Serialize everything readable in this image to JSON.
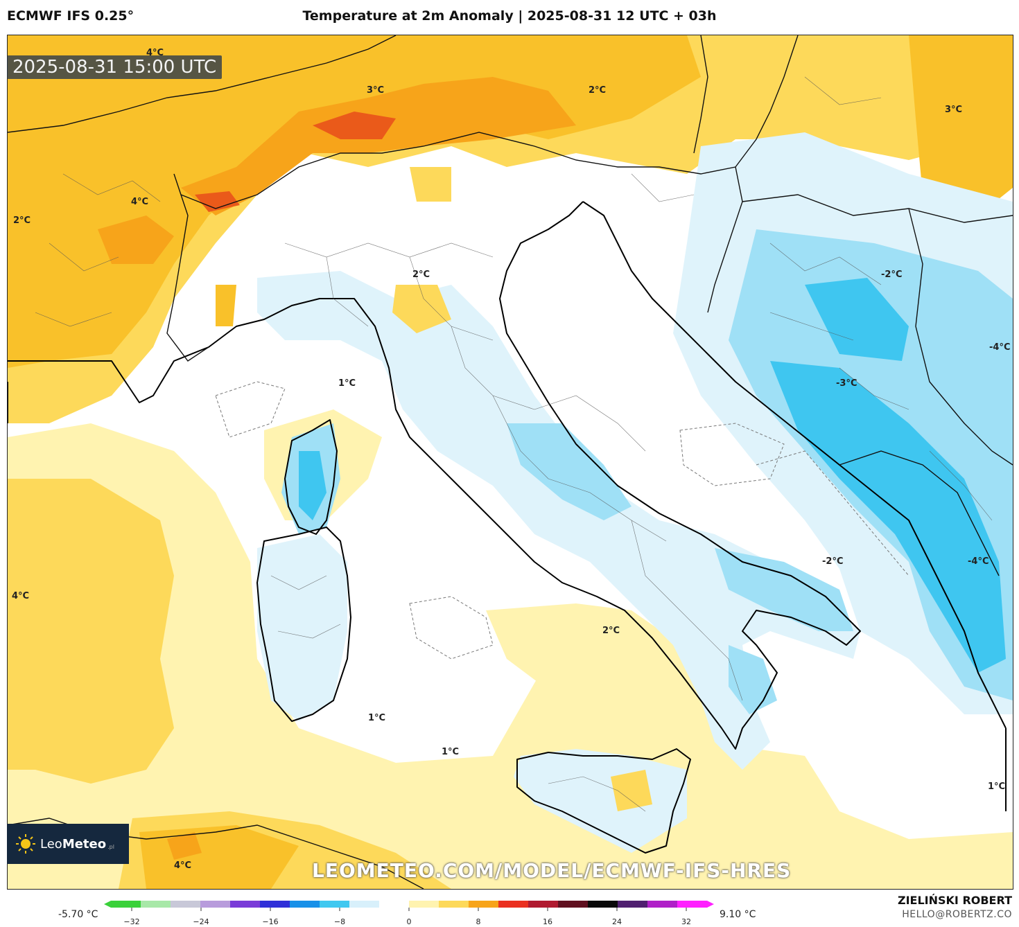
{
  "header": {
    "model": "ECMWF IFS 0.25°",
    "title": "Temperature at 2m Anomaly | 2025-08-31 12 UTC + 03h"
  },
  "map": {
    "valid_time": "2025-08-31 15:00 UTC",
    "watermark": "LEOMETEO.COM/MODEL/ECMWF-IFS-HRES",
    "logo": {
      "brand_light": "Leo",
      "brand_bold": "Meteo",
      "brand_suffix": ".pl"
    },
    "contour_labels": [
      "4°C",
      "3°C",
      "2°C",
      "3°C",
      "4°C",
      "2°C",
      "2°C",
      "-2°C",
      "-4°C",
      "-3°C",
      "1°C",
      "-2°C",
      "-4°C",
      "4°C",
      "2°C",
      "1°C",
      "1°C",
      "1°C",
      "4°C"
    ],
    "colors": {
      "warm_light": "#fff3b0",
      "warm_mid": "#fdd95a",
      "warm_strong": "#f9c12a",
      "warm_orange": "#f7a41a",
      "warm_red": "#ea5a1a",
      "cool_light": "#dff3fb",
      "cool_mid": "#9fe0f6",
      "cool_strong": "#3fc6f0",
      "land_border": "#000000"
    }
  },
  "colorbar": {
    "min_label": "-5.70 °C",
    "max_label": "9.10 °C",
    "ticks": [
      "-32",
      "-24",
      "-16",
      "-8",
      "0",
      "8",
      "16",
      "24",
      "32"
    ],
    "range": [
      -32,
      32
    ],
    "stops": [
      "#3ad13a",
      "#a8e8a8",
      "#c8c8d8",
      "#b89cdc",
      "#7a3cd8",
      "#3030d8",
      "#1890e8",
      "#40c8f0",
      "#d8f0fb",
      "#ffffff",
      "#fff3b0",
      "#fdd95a",
      "#f7a41a",
      "#ea3020",
      "#b01a30",
      "#601020",
      "#0a0a0a",
      "#502070",
      "#b020c8",
      "#ff20ff"
    ]
  },
  "footer": {
    "author": "ZIELIŃSKI ROBERT",
    "email": "HELLO@ROBERTZ.CO"
  }
}
